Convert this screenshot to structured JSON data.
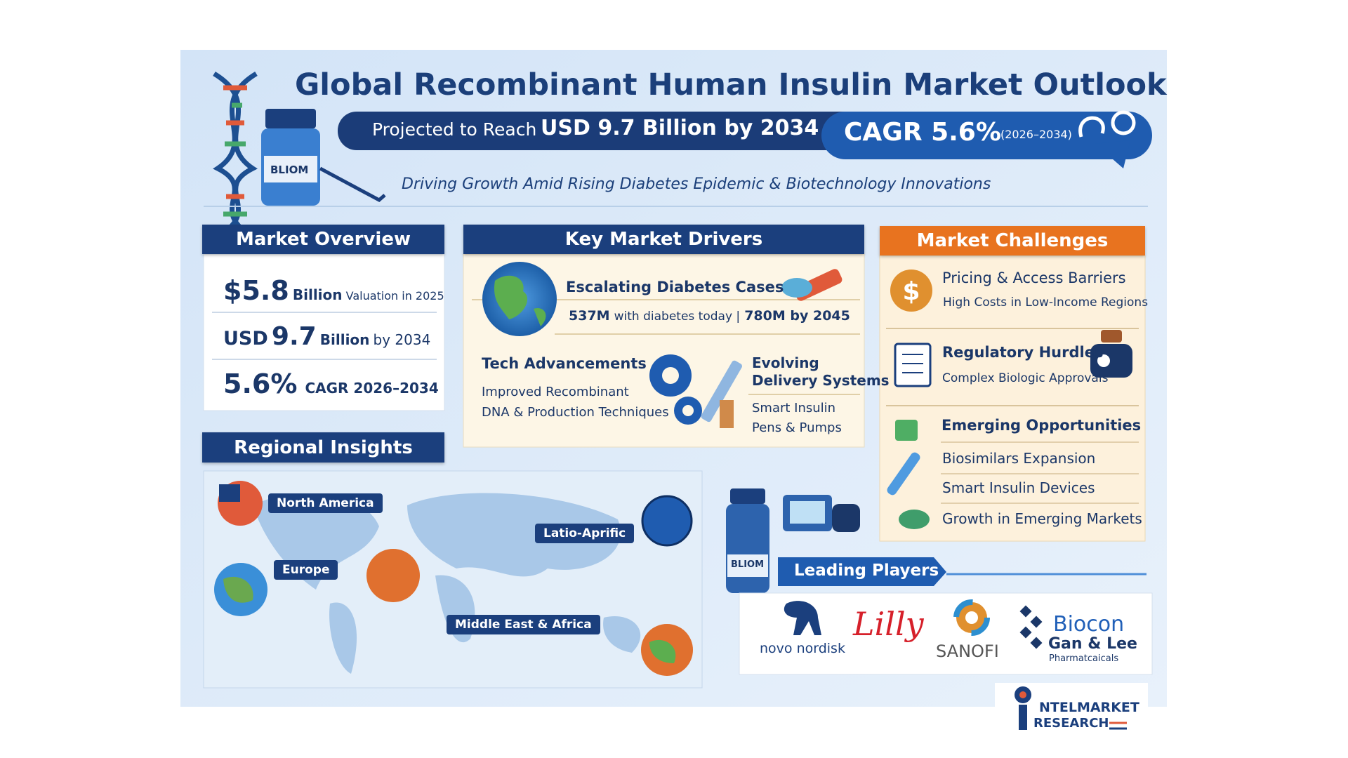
{
  "header": {
    "title": "Global Recombinant Human Insulin Market Outlook",
    "subtitle_prefix": "Projected to Reach",
    "subtitle_value": "USD 9.7 Billion by 2034",
    "cagr": "CAGR 5.6%",
    "cagr_period": "(2026–2034)",
    "tagline": "Driving Growth Amid Rising Diabetes Epidemic & Biotechnology Innovations"
  },
  "vial_label": "BLIOM",
  "market_overview": {
    "title": "Market Overview",
    "items": [
      {
        "value": "$5.8",
        "unit": "Billion",
        "note": "Valuation in 2025"
      },
      {
        "prefix": "USD",
        "value": "9.7",
        "unit": "Billion",
        "note": "by 2034"
      },
      {
        "value": "5.6%",
        "unit": "CAGR 2026–2034"
      }
    ]
  },
  "key_drivers": {
    "title": "Key Market Drivers",
    "items": [
      {
        "title": "Escalating Diabetes Cases",
        "stat_a": "537M",
        "stat_a_note": "with diabetes today |",
        "stat_b": "780M by 2045"
      },
      {
        "title": "Tech Advancements",
        "lines": [
          "Improved Recombinant",
          "DNA & Production Techniques"
        ]
      },
      {
        "title_lines": [
          "Evolving",
          "Delivery Systems"
        ],
        "lines": [
          "Smart Insulin",
          "Pens & Pumps"
        ]
      }
    ]
  },
  "market_challenges": {
    "title": "Market Challenges",
    "items": [
      {
        "title": "Pricing & Access Barriers",
        "note": "High Costs in Low-Income Regions"
      },
      {
        "title": "Regulatory Hurdles",
        "note": "Complex Biologic Approvals"
      }
    ],
    "opportunities": {
      "title": "Emerging Opportunities",
      "items": [
        "Biosimilars Expansion",
        "Smart Insulin Devices",
        "Growth in Emerging Markets"
      ]
    }
  },
  "regional_insights": {
    "title": "Regional Insights",
    "regions": [
      "North America",
      "Latio-Aprific",
      "Europe",
      "Middle East & Africa"
    ]
  },
  "leading_players": {
    "title": "Leading Players",
    "players": [
      "novo nordisk",
      "Lilly",
      "SANOFI",
      "Biocon",
      "Gan & Lee",
      "Pharmatcaicals"
    ]
  },
  "brand": {
    "name": "NTELMARKET",
    "sub": "RESEARCH"
  }
}
